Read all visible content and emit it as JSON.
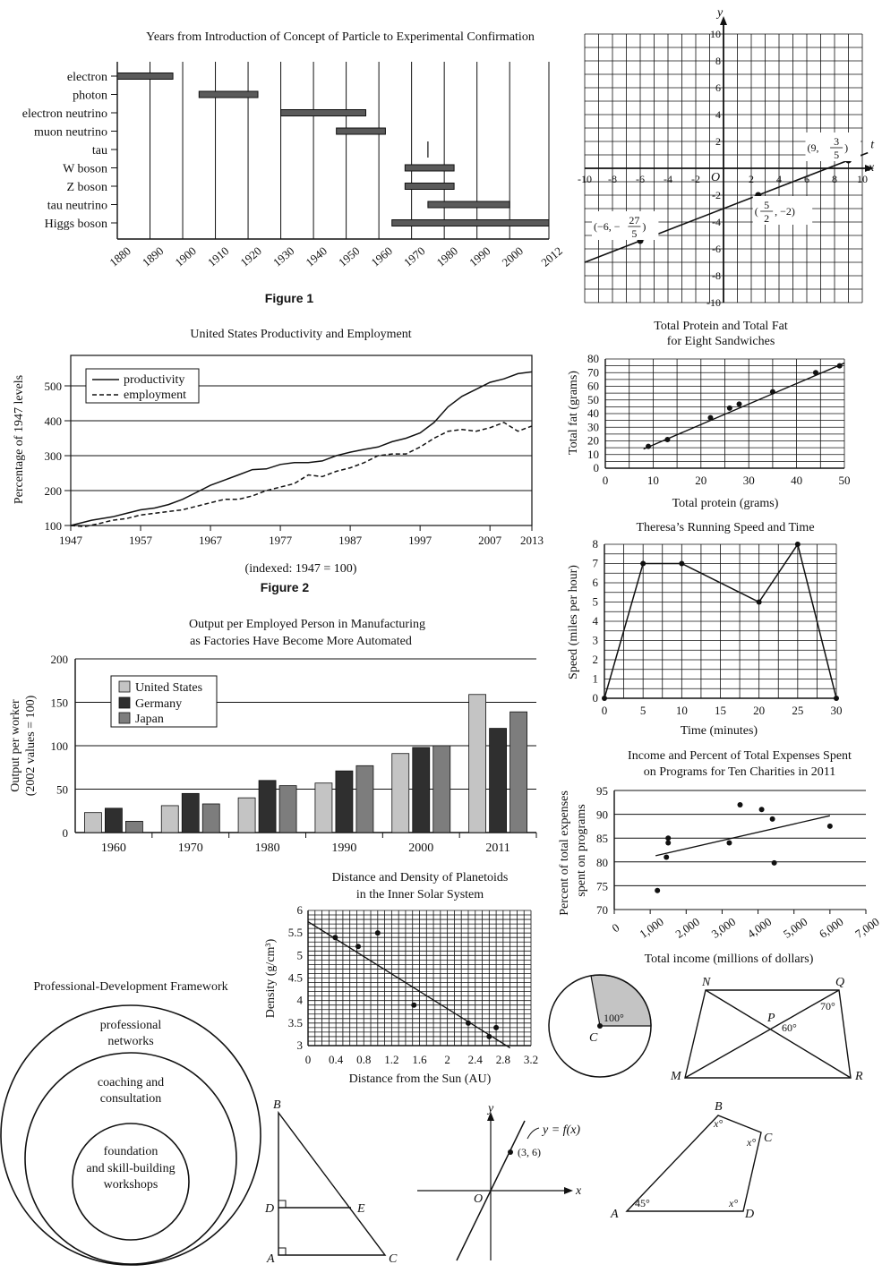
{
  "chart_data": [
    {
      "id": "gantt",
      "type": "bar",
      "title": "Years from Introduction of Concept of Particle to Experimental Confirmation",
      "caption": "Figure 1",
      "ticks": [
        "1880",
        "1890",
        "1900",
        "1910",
        "1920",
        "1930",
        "1940",
        "1950",
        "1960",
        "1970",
        "1980",
        "1990",
        "2000",
        "2012"
      ],
      "tick_values": [
        1880,
        1890,
        1900,
        1910,
        1920,
        1930,
        1940,
        1950,
        1960,
        1970,
        1980,
        1990,
        2000,
        2012
      ],
      "items": [
        {
          "label": "electron",
          "start": 1880,
          "end": 1897
        },
        {
          "label": "photon",
          "start": 1905,
          "end": 1923
        },
        {
          "label": "electron neutrino",
          "start": 1930,
          "end": 1956
        },
        {
          "label": "muon neutrino",
          "start": 1947,
          "end": 1962
        },
        {
          "label": "tau",
          "start": 1975,
          "end": 1975
        },
        {
          "label": "W boson",
          "start": 1968,
          "end": 1983
        },
        {
          "label": "Z boson",
          "start": 1968,
          "end": 1983
        },
        {
          "label": "tau neutrino",
          "start": 1975,
          "end": 2000
        },
        {
          "label": "Higgs boson",
          "start": 1964,
          "end": 2012
        }
      ]
    },
    {
      "id": "coord",
      "type": "line",
      "xlabel": "x",
      "ylabel": "y",
      "line_label": "t",
      "xlim": [
        -10,
        10
      ],
      "ylim": [
        -10,
        10
      ],
      "ticks": [
        "-10",
        "-8",
        "-6",
        "-4",
        "-2",
        "2",
        "4",
        "6",
        "8",
        "10"
      ],
      "tick_values": [
        -10,
        -8,
        -6,
        -4,
        -2,
        2,
        4,
        6,
        8,
        10
      ],
      "origin": "O",
      "points": [
        {
          "x": -6,
          "y": -5.4,
          "label": "(−6, −",
          "num": "27",
          "den": "5",
          "close": ")"
        },
        {
          "x": 2.5,
          "y": -2,
          "label": "(",
          "num": "5",
          "den": "2",
          "close": ", −2)"
        },
        {
          "x": 9,
          "y": 0.6,
          "label": "(9, ",
          "num": "3",
          "den": "5",
          "close": ")"
        }
      ]
    },
    {
      "id": "productivity",
      "type": "line",
      "title": "United States Productivity and Employment",
      "ylabel": "Percentage of 1947 levels",
      "note": "(indexed: 1947 = 100)",
      "caption": "Figure 2",
      "xticks": [
        "1947",
        "1957",
        "1967",
        "1977",
        "1987",
        "1997",
        "2007",
        "2013"
      ],
      "xtick_values": [
        1947,
        1957,
        1967,
        1977,
        1987,
        1997,
        2007,
        2013
      ],
      "yticks": [
        "100",
        "200",
        "300",
        "400",
        "500"
      ],
      "xlim": [
        1947,
        2013
      ],
      "ylim": [
        100,
        580
      ],
      "series": [
        {
          "name": "productivity",
          "x": [
            1947,
            1950,
            1953,
            1955,
            1957,
            1959,
            1961,
            1963,
            1965,
            1967,
            1969,
            1971,
            1973,
            1975,
            1977,
            1979,
            1981,
            1983,
            1985,
            1987,
            1989,
            1991,
            1993,
            1995,
            1997,
            1999,
            2001,
            2003,
            2005,
            2007,
            2009,
            2011,
            2013
          ],
          "y": [
            100,
            115,
            125,
            135,
            145,
            150,
            160,
            175,
            195,
            215,
            230,
            245,
            260,
            262,
            275,
            280,
            280,
            285,
            300,
            310,
            318,
            325,
            340,
            350,
            365,
            395,
            440,
            470,
            490,
            510,
            520,
            535,
            540
          ]
        },
        {
          "name": "employment",
          "x": [
            1947,
            1949,
            1951,
            1953,
            1955,
            1957,
            1959,
            1961,
            1963,
            1965,
            1967,
            1969,
            1971,
            1973,
            1975,
            1977,
            1979,
            1981,
            1983,
            1985,
            1987,
            1989,
            1991,
            1993,
            1995,
            1997,
            1999,
            2001,
            2003,
            2005,
            2007,
            2009,
            2011,
            2013
          ],
          "y": [
            100,
            97,
            105,
            115,
            120,
            130,
            135,
            140,
            145,
            155,
            165,
            175,
            175,
            185,
            200,
            210,
            220,
            245,
            240,
            255,
            265,
            280,
            300,
            305,
            305,
            325,
            350,
            370,
            375,
            370,
            380,
            395,
            370,
            385
          ]
        }
      ]
    },
    {
      "id": "protein",
      "type": "scatter",
      "title": "Total Protein and Total Fat",
      "subtitle": "for Eight Sandwiches",
      "xlabel": "Total protein (grams)",
      "ylabel": "Total fat (grams)",
      "xticks": [
        "0",
        "10",
        "20",
        "30",
        "40",
        "50"
      ],
      "yticks": [
        "0",
        "10",
        "20",
        "30",
        "40",
        "50",
        "60",
        "70",
        "80"
      ],
      "xlim": [
        0,
        50
      ],
      "ylim": [
        0,
        80
      ],
      "x": [
        9,
        13,
        22,
        26,
        28,
        35,
        44,
        49
      ],
      "y": [
        16,
        21,
        37,
        44,
        47,
        56,
        70,
        75
      ],
      "fit": [
        [
          8,
          14
        ],
        [
          50,
          77
        ]
      ]
    },
    {
      "id": "running",
      "type": "line",
      "title": "Theresa’s Running Speed and Time",
      "xlabel": "Time (minutes)",
      "ylabel": "Speed (miles per hour)",
      "xticks": [
        "0",
        "5",
        "10",
        "15",
        "20",
        "25",
        "30"
      ],
      "yticks": [
        "0",
        "1",
        "2",
        "3",
        "4",
        "5",
        "6",
        "7",
        "8"
      ],
      "xlim": [
        0,
        30
      ],
      "ylim": [
        0,
        8
      ],
      "x": [
        0,
        5,
        10,
        20,
        25,
        30
      ],
      "y": [
        0,
        7,
        7,
        5,
        8,
        0
      ]
    },
    {
      "id": "manufacturing",
      "type": "bar",
      "title": "Output per Employed Person in Manufacturing",
      "subtitle": "as Factories Have Become More Automated",
      "ylabel": "Output per worker",
      "ylabel2": "(2002 values = 100)",
      "categories": [
        "1960",
        "1970",
        "1980",
        "1990",
        "2000",
        "2011"
      ],
      "yticks": [
        "0",
        "50",
        "100",
        "150",
        "200"
      ],
      "ylim": [
        0,
        200
      ],
      "colors": [
        "#c4c4c4",
        "#2f2f2f",
        "#7d7d7d"
      ],
      "series": [
        {
          "name": "United States",
          "values": [
            23,
            31,
            40,
            57,
            91,
            159
          ]
        },
        {
          "name": "Germany",
          "values": [
            28,
            45,
            60,
            71,
            98,
            120
          ]
        },
        {
          "name": "Japan",
          "values": [
            13,
            33,
            54,
            77,
            100,
            139
          ]
        }
      ]
    },
    {
      "id": "charities",
      "type": "scatter",
      "title": "Income and Percent of Total Expenses Spent",
      "subtitle": "on Programs for Ten Charities in 2011",
      "xlabel": "Total income (millions of dollars)",
      "ylabel": "Percent of total expenses",
      "ylabel2": "spent on programs",
      "xticks": [
        "0",
        "1,000",
        "2,000",
        "3,000",
        "4,000",
        "5,000",
        "6,000",
        "7,000"
      ],
      "yticks": [
        "70",
        "75",
        "80",
        "85",
        "90",
        "95"
      ],
      "xlim": [
        0,
        7000
      ],
      "ylim": [
        70,
        95
      ],
      "x": [
        1200,
        1450,
        1500,
        1500,
        3200,
        3500,
        4100,
        4400,
        4450,
        6000
      ],
      "y": [
        74,
        81,
        84,
        85,
        84,
        92,
        91,
        89,
        79.8,
        87.5
      ],
      "fit": [
        [
          1150,
          81.3
        ],
        [
          6000,
          89.7
        ]
      ]
    },
    {
      "id": "planetoids",
      "type": "scatter",
      "title": "Distance and Density of Planetoids",
      "subtitle": "in the Inner Solar System",
      "xlabel": "Distance from the Sun (AU)",
      "ylabel": "Density (g/cm³)",
      "xticks": [
        "0",
        "0.4",
        "0.8",
        "1.2",
        "1.6",
        "2",
        "2.4",
        "2.8",
        "3.2"
      ],
      "yticks": [
        "3",
        "3.5",
        "4",
        "4.5",
        "5",
        "5.5",
        "6"
      ],
      "xlim": [
        0,
        3.2
      ],
      "ylim": [
        3,
        6
      ],
      "x": [
        0.39,
        0.72,
        1.0,
        1.52,
        2.3,
        2.6,
        2.7
      ],
      "y": [
        5.4,
        5.2,
        5.5,
        3.9,
        3.5,
        3.2,
        3.4
      ],
      "fit": [
        [
          0,
          5.75
        ],
        [
          2.9,
          2.95
        ]
      ]
    }
  ],
  "framework": {
    "title": "Professional-Development Framework",
    "outer": [
      "professional",
      "networks"
    ],
    "middle": [
      "coaching and",
      "consultation"
    ],
    "inner": [
      "foundation",
      "and skill-building",
      "workshops"
    ]
  },
  "geometry": {
    "circle": {
      "angle": "100°",
      "center": "C"
    },
    "crossing": {
      "N": "N",
      "Q": "Q",
      "P": "P",
      "M": "M",
      "R": "R",
      "angle_q": "70°",
      "angle_p": "60°"
    },
    "triangle": {
      "B": "B",
      "D": "D",
      "E": "E",
      "A": "A",
      "C": "C"
    },
    "function": {
      "y": "y",
      "x": "x",
      "origin": "O",
      "curve": "y = f(x)",
      "point": "(3, 6)"
    },
    "quad": {
      "A": "A",
      "B": "B",
      "C": "C",
      "D": "D",
      "angle_a": "45°",
      "x": "x°"
    }
  }
}
